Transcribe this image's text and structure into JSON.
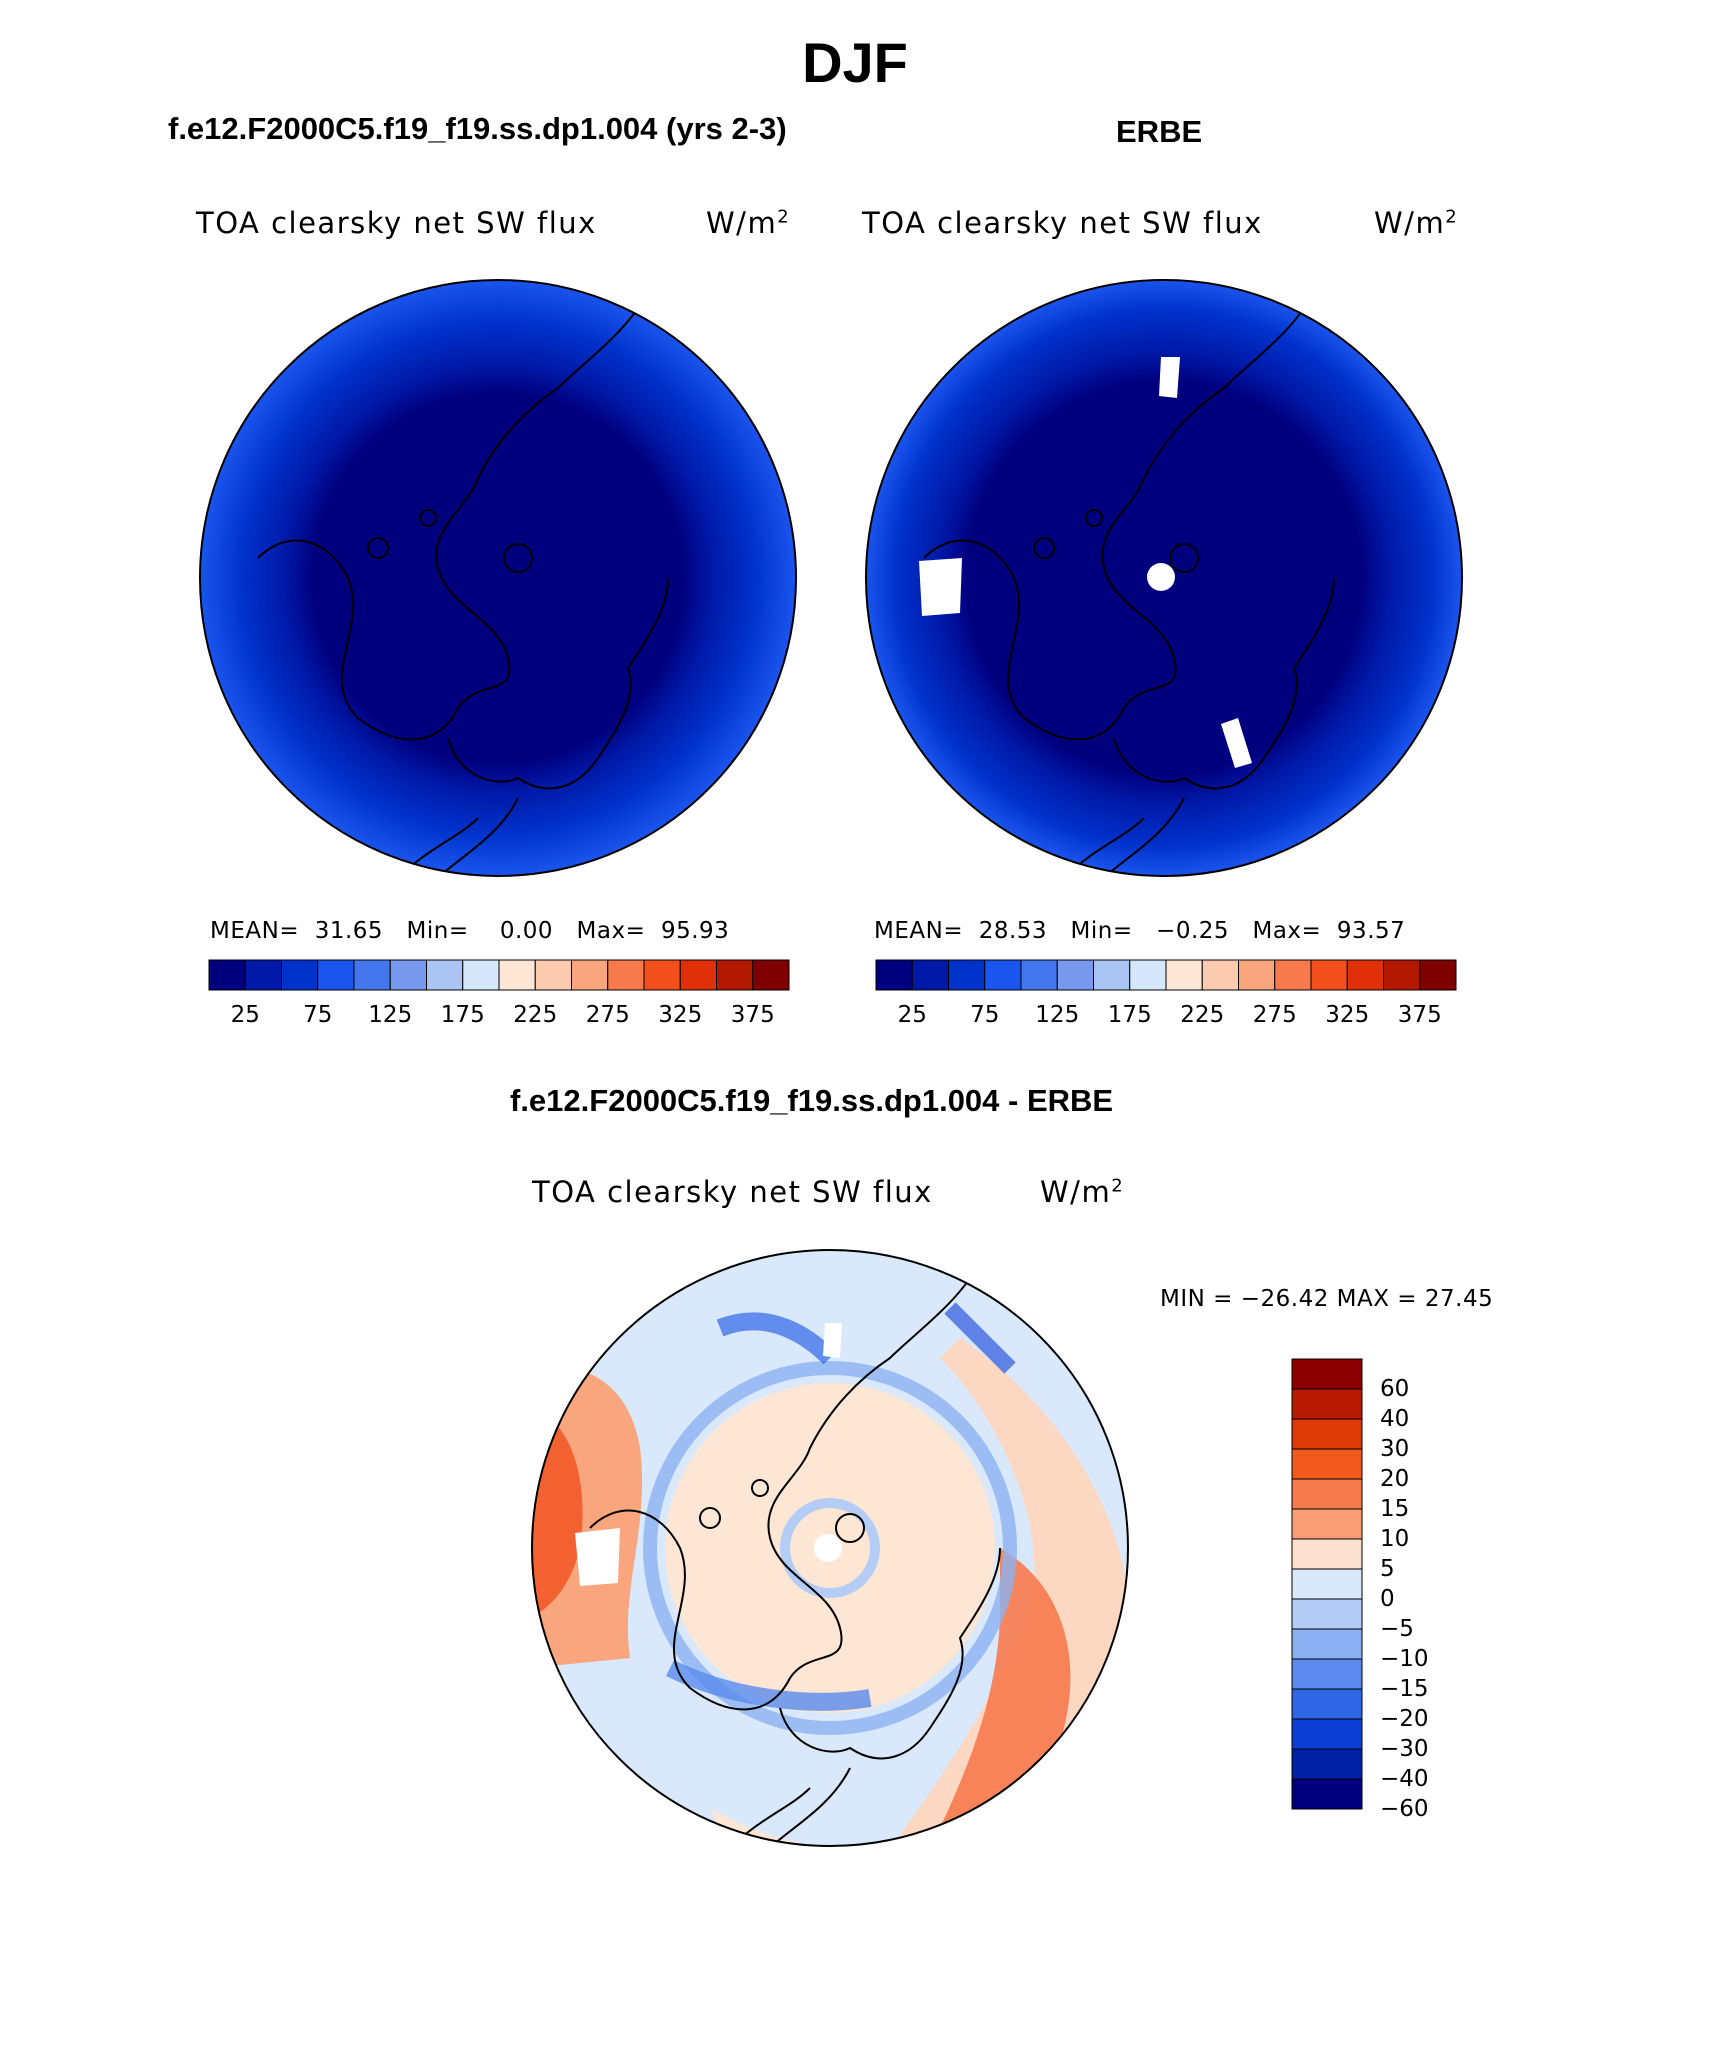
{
  "title": "DJF",
  "panels": [
    {
      "case_title": "f.e12.F2000C5.f19_f19.ss.dp1.004 (yrs 2-3)",
      "variable": "TOA clearsky net SW flux",
      "units_base": "W/m",
      "units_sup": "2",
      "stats": {
        "mean_label": "MEAN=",
        "mean": "31.65",
        "min_label": "Min=",
        "min": "0.00",
        "max_label": "Max=",
        "max": "95.93"
      }
    },
    {
      "case_title": "ERBE",
      "variable": "TOA clearsky net SW flux",
      "units_base": "W/m",
      "units_sup": "2",
      "stats": {
        "mean_label": "MEAN=",
        "mean": "28.53",
        "min_label": "Min=",
        "min": "−0.25",
        "max_label": "Max=",
        "max": "93.57"
      }
    },
    {
      "case_title": "f.e12.F2000C5.f19_f19.ss.dp1.004 - ERBE",
      "variable": "TOA clearsky net SW flux",
      "units_base": "W/m",
      "units_sup": "2",
      "minmax": "MIN = −26.42 MAX =  27.45"
    }
  ],
  "colorbar_abs": {
    "colors": [
      "#00007f",
      "#0019a8",
      "#0032cc",
      "#1a55ee",
      "#4477ee",
      "#7799ee",
      "#aac4f4",
      "#d6e6fb",
      "#fde6d4",
      "#fccbb0",
      "#f9a57e",
      "#f77a4c",
      "#f3501e",
      "#df3008",
      "#b31800",
      "#7f0000"
    ],
    "tick_labels": [
      "25",
      "75",
      "125",
      "175",
      "225",
      "275",
      "325",
      "375"
    ]
  },
  "colorbar_diff": {
    "colors_top_to_bottom": [
      "#8b0000",
      "#b81a00",
      "#dd3a08",
      "#f2591c",
      "#f77a4c",
      "#fa9e78",
      "#fde2cf",
      "#d9e8fb",
      "#b3cdf7",
      "#8cb1f3",
      "#5a8bec",
      "#2f66e6",
      "#0c3fd6",
      "#0021a6",
      "#00007f"
    ],
    "tick_labels": [
      "60",
      "40",
      "30",
      "20",
      "15",
      "10",
      "5",
      "0",
      "−5",
      "−10",
      "−15",
      "−20",
      "−30",
      "−40",
      "−60"
    ]
  }
}
